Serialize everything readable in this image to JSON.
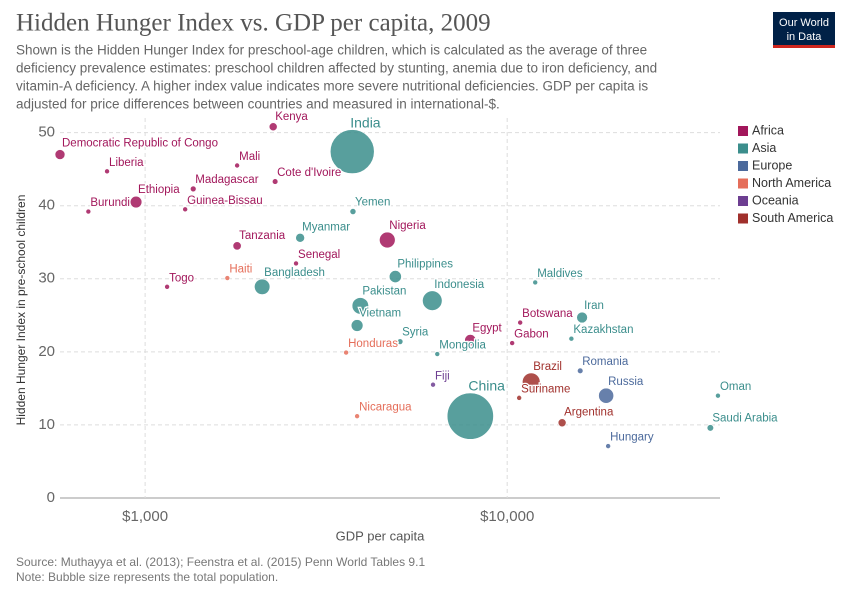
{
  "chart_data": {
    "type": "bubble",
    "title": "Hidden Hunger Index vs. GDP per capita, 2009",
    "subtitle_lines": [
      "Shown is the Hidden Hunger Index for preschool-age children, which is calculated as the average of three",
      "deficiency prevalence estimates: preschool children affected by stunting, anemia due to iron deficiency, and",
      "vitamin-A deficiency. A higher index value indicates more severe nutritional deficiencies. GDP per capita is",
      "adjusted for price differences between countries and measured in international-$."
    ],
    "logo": [
      "Our World",
      "in Data"
    ],
    "x_label": "GDP per capita",
    "y_label": "Hidden Hunger Index in pre-school children",
    "source": "Source: Muthayya et al. (2013); Feenstra et al. (2015) Penn World Tables 9.1",
    "note": "Note: Bubble size represents the total population.",
    "x_log": true,
    "grid": true,
    "legend": "right",
    "xlim": [
      582,
      38700
    ],
    "ylim": [
      0,
      52
    ],
    "xticks": [
      {
        "value": 1000,
        "label": "$1,000"
      },
      {
        "value": 10000,
        "label": "$10,000"
      }
    ],
    "yticks": [
      0,
      10,
      20,
      30,
      40,
      50
    ],
    "series": [
      {
        "name": "Africa",
        "color": "#a2175b",
        "labels": [
          "Democratic Republic of Congo",
          "Liberia",
          "Ethiopia",
          "Burundi",
          "Madagascar",
          "Guinea-Bissau",
          "Mali",
          "Kenya",
          "Cote d'Ivoire",
          "Tanzania",
          "Senegal",
          "Togo",
          "Nigeria",
          "Botswana",
          "Egypt",
          "Gabon"
        ],
        "x": [
          582,
          785,
          944,
          697,
          1358,
          1290,
          1795,
          2258,
          2286,
          1795,
          2611,
          1150,
          4665,
          10860,
          7910,
          10320
        ],
        "values": [
          47.0,
          44.7,
          40.5,
          39.2,
          42.3,
          39.5,
          45.5,
          50.8,
          43.3,
          34.5,
          32.1,
          28.9,
          35.3,
          24.0,
          21.6,
          21.2
        ],
        "sizes": [
          62,
          4,
          85,
          9,
          21,
          1.5,
          15,
          40,
          20,
          43,
          13,
          6,
          155,
          2,
          80,
          1.5
        ]
      },
      {
        "name": "Asia",
        "color": "#3b8e8c",
        "labels": [
          "India",
          "Yemen",
          "Myanmar",
          "Bangladesh",
          "Philippines",
          "Indonesia",
          "Pakistan",
          "Vietnam",
          "Syria",
          "Mongolia",
          "Maldives",
          "Iran",
          "Kazakhstan",
          "China",
          "Saudi Arabia",
          "Oman"
        ],
        "x": [
          3733,
          3750,
          2680,
          2105,
          4910,
          6210,
          3930,
          3850,
          5060,
          6410,
          11950,
          16100,
          15040,
          7910,
          36400,
          38200
        ],
        "values": [
          47.4,
          39.2,
          35.6,
          28.9,
          30.3,
          27.0,
          26.3,
          23.6,
          21.4,
          19.7,
          29.5,
          24.7,
          21.8,
          11.2,
          9.6,
          14.0
        ],
        "sizes": [
          1200,
          23,
          50,
          150,
          92,
          240,
          170,
          87,
          21,
          2.7,
          0.35,
          73,
          16,
          1330,
          27,
          3
        ]
      },
      {
        "name": "Europe",
        "color": "#4c6a9c",
        "labels": [
          "Romania",
          "Russia",
          "Hungary"
        ],
        "x": [
          15910,
          18760,
          19000
        ],
        "values": [
          17.4,
          14.0,
          7.1
        ],
        "sizes": [
          20,
          142,
          10
        ]
      },
      {
        "name": "North America",
        "color": "#e56e5a",
        "labels": [
          "Haiti",
          "Honduras",
          "Nicaragua"
        ],
        "x": [
          1687,
          3590,
          3850
        ],
        "values": [
          30.1,
          19.9,
          11.2
        ],
        "sizes": [
          10,
          8,
          6
        ]
      },
      {
        "name": "Oceania",
        "color": "#6d3e91",
        "labels": [
          "Fiji"
        ],
        "x": [
          6240
        ],
        "values": [
          15.5
        ],
        "sizes": [
          0.86
        ]
      },
      {
        "name": "South America",
        "color": "#a0302c",
        "labels": [
          "Brazil",
          "Suriname",
          "Argentina"
        ],
        "x": [
          11650,
          10790,
          14180
        ],
        "values": [
          15.9,
          13.7,
          10.3
        ],
        "sizes": [
          195,
          0.5,
          40
        ]
      }
    ]
  }
}
